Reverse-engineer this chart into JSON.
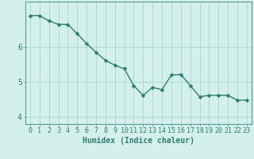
{
  "x": [
    0,
    1,
    2,
    3,
    4,
    5,
    6,
    7,
    8,
    9,
    10,
    11,
    12,
    13,
    14,
    15,
    16,
    17,
    18,
    19,
    20,
    21,
    22,
    23
  ],
  "y": [
    6.9,
    6.9,
    6.75,
    6.65,
    6.65,
    6.38,
    6.1,
    5.85,
    5.62,
    5.48,
    5.38,
    4.9,
    4.62,
    4.85,
    4.78,
    5.2,
    5.22,
    4.9,
    4.58,
    4.62,
    4.62,
    4.62,
    4.48,
    4.48
  ],
  "line_color": "#2e7d6e",
  "marker": "D",
  "marker_size": 2.5,
  "line_width": 1.0,
  "bg_color": "#d4f0ec",
  "grid_color": "#a8d8d2",
  "tick_color": "#2e7d6e",
  "xlabel": "Humidex (Indice chaleur)",
  "xlabel_fontsize": 7,
  "tick_fontsize": 6,
  "ylim": [
    3.8,
    7.3
  ],
  "yticks": [
    4,
    5,
    6
  ],
  "xlim": [
    -0.5,
    23.5
  ],
  "spine_color": "#5a9a90"
}
